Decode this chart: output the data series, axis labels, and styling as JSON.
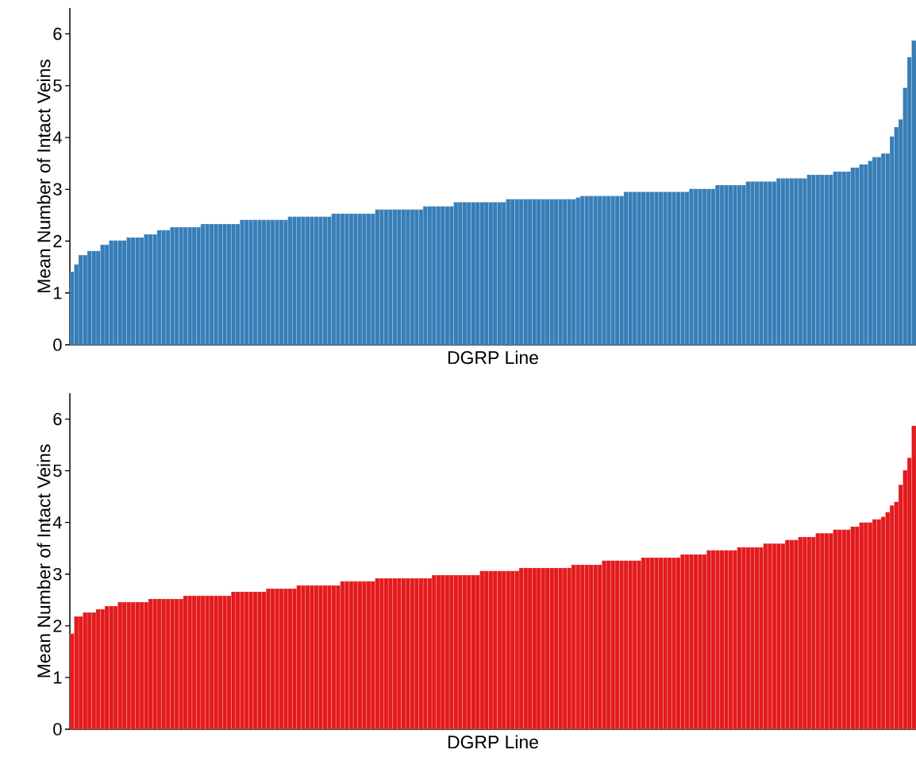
{
  "chart_data": [
    {
      "type": "bar",
      "xlabel": "DGRP Line",
      "ylabel": "Mean Number of Intact Veins",
      "color": "#377eb8",
      "ylim": [
        0,
        6.5
      ],
      "yticks": [
        0,
        1,
        2,
        3,
        4,
        5,
        6
      ],
      "categories": [
        null,
        null,
        null,
        null,
        null,
        null,
        null,
        null,
        null,
        null,
        null,
        null,
        null,
        null,
        null,
        null,
        null,
        null,
        null,
        null,
        null,
        null,
        null,
        null,
        null,
        null,
        null,
        null,
        null,
        null,
        null,
        null,
        null,
        null,
        null,
        null,
        null,
        null,
        null,
        null,
        null,
        null,
        null,
        null,
        null,
        null,
        null,
        null,
        null,
        null,
        null,
        null,
        null,
        null,
        null,
        null,
        null,
        null,
        null,
        null,
        null,
        null,
        null,
        null,
        null,
        null,
        null,
        null,
        null,
        null,
        null,
        null,
        null,
        null,
        null,
        null,
        null,
        null,
        null,
        null,
        null,
        null,
        null,
        null,
        null,
        null,
        null,
        null,
        null,
        null,
        null,
        null,
        null,
        null,
        null,
        null,
        null,
        null,
        null,
        null,
        null,
        null,
        null,
        null,
        null,
        null,
        null,
        null,
        null,
        null,
        null,
        null,
        null,
        null,
        null,
        null,
        null,
        null,
        null,
        null,
        null,
        null,
        null,
        null,
        null,
        null,
        null,
        null,
        null,
        null,
        null,
        null,
        null,
        null,
        null,
        null,
        null,
        null,
        null,
        null,
        null,
        null,
        null,
        null,
        null,
        null,
        null,
        null,
        null,
        null,
        null,
        null,
        null,
        null,
        null,
        null,
        null,
        null,
        null,
        null,
        null,
        null,
        null,
        null,
        null,
        null,
        null,
        null,
        null,
        null,
        null,
        null,
        null,
        null,
        null,
        null,
        null,
        null,
        null,
        null,
        null,
        null,
        null,
        null,
        null,
        null,
        null,
        null,
        null,
        null,
        null,
        null,
        null,
        null
      ],
      "values": [
        1.41,
        1.55,
        1.73,
        1.73,
        1.81,
        1.81,
        1.81,
        1.93,
        1.93,
        2.01,
        2.01,
        2.01,
        2.01,
        2.07,
        2.07,
        2.07,
        2.07,
        2.13,
        2.13,
        2.13,
        2.21,
        2.21,
        2.21,
        2.27,
        2.27,
        2.27,
        2.27,
        2.27,
        2.27,
        2.27,
        2.33,
        2.33,
        2.33,
        2.33,
        2.33,
        2.33,
        2.33,
        2.33,
        2.33,
        2.41,
        2.41,
        2.41,
        2.41,
        2.41,
        2.41,
        2.41,
        2.41,
        2.41,
        2.41,
        2.41,
        2.47,
        2.47,
        2.47,
        2.47,
        2.47,
        2.47,
        2.47,
        2.47,
        2.47,
        2.47,
        2.53,
        2.53,
        2.53,
        2.53,
        2.53,
        2.53,
        2.53,
        2.53,
        2.53,
        2.53,
        2.61,
        2.61,
        2.61,
        2.61,
        2.61,
        2.61,
        2.61,
        2.61,
        2.61,
        2.61,
        2.61,
        2.67,
        2.67,
        2.67,
        2.67,
        2.67,
        2.67,
        2.67,
        2.75,
        2.75,
        2.75,
        2.75,
        2.75,
        2.75,
        2.75,
        2.75,
        2.75,
        2.75,
        2.75,
        2.75,
        2.81,
        2.81,
        2.81,
        2.81,
        2.81,
        2.81,
        2.81,
        2.81,
        2.81,
        2.81,
        2.81,
        2.81,
        2.81,
        2.81,
        2.81,
        2.81,
        2.84,
        2.87,
        2.87,
        2.87,
        2.87,
        2.87,
        2.87,
        2.87,
        2.87,
        2.87,
        2.87,
        2.95,
        2.95,
        2.95,
        2.95,
        2.95,
        2.95,
        2.95,
        2.95,
        2.95,
        2.95,
        2.95,
        2.95,
        2.95,
        2.95,
        2.95,
        3.01,
        3.01,
        3.01,
        3.01,
        3.01,
        3.01,
        3.08,
        3.08,
        3.08,
        3.08,
        3.08,
        3.08,
        3.08,
        3.15,
        3.15,
        3.15,
        3.15,
        3.15,
        3.15,
        3.15,
        3.21,
        3.21,
        3.21,
        3.21,
        3.21,
        3.21,
        3.21,
        3.28,
        3.28,
        3.28,
        3.28,
        3.28,
        3.28,
        3.34,
        3.34,
        3.34,
        3.34,
        3.42,
        3.42,
        3.48,
        3.48,
        3.55,
        3.62,
        3.62,
        3.69,
        3.69,
        4.02,
        4.2,
        4.35,
        4.96,
        5.55,
        5.87
      ]
    },
    {
      "type": "bar",
      "xlabel": "DGRP Line",
      "ylabel": "Mean Number of Intact Veins",
      "color": "#e41a1c",
      "ylim": [
        0,
        6.5
      ],
      "yticks": [
        0,
        1,
        2,
        3,
        4,
        5,
        6
      ],
      "categories": [
        null,
        null,
        null,
        null,
        null,
        null,
        null,
        null,
        null,
        null,
        null,
        null,
        null,
        null,
        null,
        null,
        null,
        null,
        null,
        null,
        null,
        null,
        null,
        null,
        null,
        null,
        null,
        null,
        null,
        null,
        null,
        null,
        null,
        null,
        null,
        null,
        null,
        null,
        null,
        null,
        null,
        null,
        null,
        null,
        null,
        null,
        null,
        null,
        null,
        null,
        null,
        null,
        null,
        null,
        null,
        null,
        null,
        null,
        null,
        null,
        null,
        null,
        null,
        null,
        null,
        null,
        null,
        null,
        null,
        null,
        null,
        null,
        null,
        null,
        null,
        null,
        null,
        null,
        null,
        null,
        null,
        null,
        null,
        null,
        null,
        null,
        null,
        null,
        null,
        null,
        null,
        null,
        null,
        null,
        null,
        null,
        null,
        null,
        null,
        null,
        null,
        null,
        null,
        null,
        null,
        null,
        null,
        null,
        null,
        null,
        null,
        null,
        null,
        null,
        null,
        null,
        null,
        null,
        null,
        null,
        null,
        null,
        null,
        null,
        null,
        null,
        null,
        null,
        null,
        null,
        null,
        null,
        null,
        null,
        null,
        null,
        null,
        null,
        null,
        null,
        null,
        null,
        null,
        null,
        null,
        null,
        null,
        null,
        null,
        null,
        null,
        null,
        null,
        null,
        null,
        null,
        null,
        null,
        null,
        null,
        null,
        null,
        null,
        null,
        null,
        null,
        null,
        null,
        null,
        null,
        null,
        null,
        null,
        null,
        null,
        null,
        null,
        null,
        null,
        null,
        null,
        null,
        null,
        null,
        null,
        null,
        null,
        null,
        null,
        null,
        null,
        null,
        null,
        null
      ],
      "values": [
        1.85,
        2.18,
        2.18,
        2.26,
        2.26,
        2.26,
        2.32,
        2.32,
        2.38,
        2.38,
        2.38,
        2.46,
        2.46,
        2.46,
        2.46,
        2.46,
        2.46,
        2.46,
        2.52,
        2.52,
        2.52,
        2.52,
        2.52,
        2.52,
        2.52,
        2.52,
        2.58,
        2.58,
        2.58,
        2.58,
        2.58,
        2.58,
        2.58,
        2.58,
        2.58,
        2.58,
        2.58,
        2.66,
        2.66,
        2.66,
        2.66,
        2.66,
        2.66,
        2.66,
        2.66,
        2.72,
        2.72,
        2.72,
        2.72,
        2.72,
        2.72,
        2.72,
        2.78,
        2.78,
        2.78,
        2.78,
        2.78,
        2.78,
        2.78,
        2.78,
        2.78,
        2.78,
        2.86,
        2.86,
        2.86,
        2.86,
        2.86,
        2.86,
        2.86,
        2.86,
        2.92,
        2.92,
        2.92,
        2.92,
        2.92,
        2.92,
        2.92,
        2.92,
        2.92,
        2.92,
        2.92,
        2.92,
        2.92,
        2.98,
        2.98,
        2.98,
        2.98,
        2.98,
        2.98,
        2.98,
        2.98,
        2.98,
        2.98,
        2.98,
        3.06,
        3.06,
        3.06,
        3.06,
        3.06,
        3.06,
        3.06,
        3.06,
        3.06,
        3.12,
        3.12,
        3.12,
        3.12,
        3.12,
        3.12,
        3.12,
        3.12,
        3.12,
        3.12,
        3.12,
        3.12,
        3.18,
        3.18,
        3.18,
        3.18,
        3.18,
        3.18,
        3.18,
        3.26,
        3.26,
        3.26,
        3.26,
        3.26,
        3.26,
        3.26,
        3.26,
        3.26,
        3.32,
        3.32,
        3.32,
        3.32,
        3.32,
        3.32,
        3.32,
        3.32,
        3.32,
        3.38,
        3.38,
        3.38,
        3.38,
        3.38,
        3.38,
        3.46,
        3.46,
        3.46,
        3.46,
        3.46,
        3.46,
        3.46,
        3.52,
        3.52,
        3.52,
        3.52,
        3.52,
        3.52,
        3.59,
        3.59,
        3.59,
        3.59,
        3.59,
        3.66,
        3.66,
        3.66,
        3.72,
        3.72,
        3.72,
        3.72,
        3.79,
        3.79,
        3.79,
        3.79,
        3.86,
        3.86,
        3.86,
        3.86,
        3.92,
        3.92,
        4.0,
        4.0,
        4.0,
        4.06,
        4.06,
        4.11,
        4.2,
        4.33,
        4.4,
        4.73,
        5.01,
        5.25,
        5.87
      ]
    }
  ]
}
